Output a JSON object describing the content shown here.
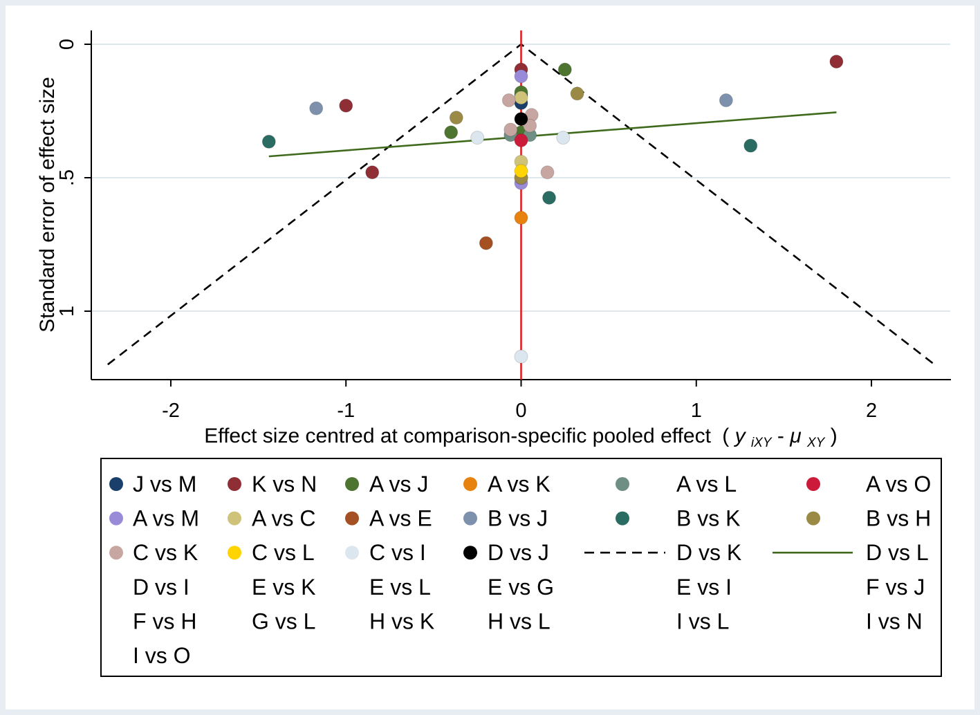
{
  "chart_data": {
    "type": "scatter",
    "title": "",
    "xlabel": "Effect size centred at comparison-specific pooled effect",
    "xlabel_math": {
      "y": "y",
      "y_sub": "iXY",
      "dash": "-",
      "mu": "μ",
      "mu_sub": "XY",
      "open": "(",
      "close": ")"
    },
    "ylabel": "Standard error of effect size",
    "xlim": [
      -2.45,
      2.45
    ],
    "ylim": [
      1.26,
      0
    ],
    "y_reversed": true,
    "x_ticks": [
      -2,
      -1,
      0,
      1,
      2
    ],
    "x_tick_labels": [
      "-2",
      "-1",
      "0",
      "1",
      "2"
    ],
    "y_ticks": [
      0,
      0.5,
      1
    ],
    "y_tick_labels": [
      "0",
      ".5",
      "1"
    ],
    "grid": true,
    "colors": {
      "J vs M": "#1b3f6b",
      "K vs N": "#8f2e35",
      "A vs J": "#4e7530",
      "A vs K": "#e8820e",
      "A vs L": "#6f8e84",
      "A vs O": "#cc1a3a",
      "A vs M": "#9a8bd8",
      "A vs C": "#cfc37a",
      "A vs E": "#a55023",
      "B vs J": "#7d91ad",
      "B vs K": "#2a6b62",
      "B vs H": "#9a8a46",
      "C vs K": "#c7a5a1",
      "C vs L": "#ffd400",
      "C vs I": "#dce6ee",
      "D vs J": "#000000",
      "zero_line": "#e11f1f",
      "funnel": "#000000",
      "regression": "#3f6a1c"
    },
    "zero_line": {
      "x": 0
    },
    "funnel_lines": {
      "apex": [
        0,
        0
      ],
      "left_end": [
        -2.36,
        1.2
      ],
      "right_end": [
        2.36,
        1.2
      ]
    },
    "regression_line": {
      "x": [
        -1.44,
        1.8
      ],
      "y": [
        0.42,
        0.255
      ]
    },
    "series": [
      {
        "name": "J vs M",
        "points": [
          [
            0,
            0.19
          ],
          [
            0,
            0.22
          ]
        ]
      },
      {
        "name": "K vs N",
        "points": [
          [
            1.8,
            0.065
          ],
          [
            -1.0,
            0.23
          ],
          [
            -0.85,
            0.48
          ],
          [
            0,
            0.095
          ]
        ]
      },
      {
        "name": "A vs J",
        "points": [
          [
            0.25,
            0.095
          ],
          [
            -0.4,
            0.33
          ],
          [
            0,
            0.18
          ],
          [
            0,
            0.33
          ]
        ]
      },
      {
        "name": "A vs K",
        "points": [
          [
            0,
            0.65
          ]
        ]
      },
      {
        "name": "A vs L",
        "points": [
          [
            0.05,
            0.34
          ],
          [
            -0.06,
            0.34
          ]
        ]
      },
      {
        "name": "A vs O",
        "points": [
          [
            0,
            0.36
          ]
        ]
      },
      {
        "name": "A vs M",
        "points": [
          [
            0,
            0.12
          ],
          [
            0,
            0.52
          ]
        ]
      },
      {
        "name": "A vs C",
        "points": [
          [
            0,
            0.44
          ],
          [
            0,
            0.2
          ]
        ]
      },
      {
        "name": "A vs E",
        "points": [
          [
            -0.2,
            0.745
          ],
          [
            0,
            0.5
          ]
        ]
      },
      {
        "name": "B vs J",
        "points": [
          [
            -1.17,
            0.24
          ],
          [
            1.17,
            0.21
          ]
        ]
      },
      {
        "name": "B vs K",
        "points": [
          [
            -1.44,
            0.365
          ],
          [
            1.31,
            0.38
          ],
          [
            0.16,
            0.575
          ]
        ]
      },
      {
        "name": "B vs H",
        "points": [
          [
            0.32,
            0.185
          ],
          [
            -0.37,
            0.275
          ],
          [
            0,
            0.5
          ]
        ]
      },
      {
        "name": "C vs K",
        "points": [
          [
            -0.07,
            0.21
          ],
          [
            0.06,
            0.265
          ],
          [
            -0.06,
            0.32
          ],
          [
            0.05,
            0.305
          ],
          [
            0.15,
            0.48
          ]
        ]
      },
      {
        "name": "C vs L",
        "points": [
          [
            0,
            0.475
          ]
        ]
      },
      {
        "name": "C vs I",
        "points": [
          [
            -0.25,
            0.35
          ],
          [
            0.24,
            0.35
          ],
          [
            0,
            1.17
          ]
        ]
      },
      {
        "name": "D vs J",
        "points": [
          [
            0,
            0.28
          ]
        ]
      }
    ],
    "legend": {
      "position": "bottom",
      "columns": 6,
      "items": [
        {
          "label": "J vs M",
          "kind": "dot",
          "color": "#1b3f6b"
        },
        {
          "label": "K vs N",
          "kind": "dot",
          "color": "#8f2e35"
        },
        {
          "label": "A vs J",
          "kind": "dot",
          "color": "#4e7530"
        },
        {
          "label": "A vs K",
          "kind": "dot",
          "color": "#e8820e"
        },
        {
          "label": "A vs L",
          "kind": "dot",
          "color": "#6f8e84"
        },
        {
          "label": "A vs O",
          "kind": "dot",
          "color": "#cc1a3a"
        },
        {
          "label": "A vs M",
          "kind": "dot",
          "color": "#9a8bd8"
        },
        {
          "label": "A vs C",
          "kind": "dot",
          "color": "#cfc37a"
        },
        {
          "label": "A vs E",
          "kind": "dot",
          "color": "#a55023"
        },
        {
          "label": "B vs J",
          "kind": "dot",
          "color": "#7d91ad"
        },
        {
          "label": "B vs K",
          "kind": "dot",
          "color": "#2a6b62"
        },
        {
          "label": "B vs H",
          "kind": "dot",
          "color": "#9a8a46"
        },
        {
          "label": "C vs K",
          "kind": "dot",
          "color": "#c7a5a1"
        },
        {
          "label": "C vs L",
          "kind": "dot",
          "color": "#ffd400"
        },
        {
          "label": "C vs I",
          "kind": "dot",
          "color": "#dce6ee"
        },
        {
          "label": "D vs J",
          "kind": "dot",
          "color": "#000000"
        },
        {
          "label": "D vs K",
          "kind": "dash",
          "color": "#000000"
        },
        {
          "label": "D vs L",
          "kind": "solid",
          "color": "#3f6a1c"
        },
        {
          "label": "D vs I",
          "kind": "none"
        },
        {
          "label": "E vs K",
          "kind": "none"
        },
        {
          "label": "E vs L",
          "kind": "none"
        },
        {
          "label": "E vs G",
          "kind": "none"
        },
        {
          "label": "E vs I",
          "kind": "none"
        },
        {
          "label": "F vs J",
          "kind": "none"
        },
        {
          "label": "F vs H",
          "kind": "none"
        },
        {
          "label": "G vs L",
          "kind": "none"
        },
        {
          "label": "H vs K",
          "kind": "none"
        },
        {
          "label": "H vs L",
          "kind": "none"
        },
        {
          "label": "I vs L",
          "kind": "none"
        },
        {
          "label": "I vs N",
          "kind": "none"
        },
        {
          "label": "I vs O",
          "kind": "none"
        }
      ]
    }
  }
}
